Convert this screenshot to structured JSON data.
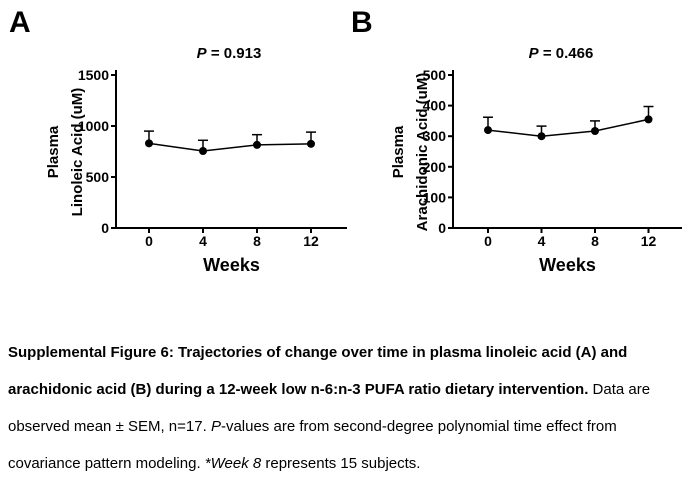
{
  "figure": {
    "background": "#ffffff",
    "ink_color": "#000000"
  },
  "chart_data": [
    {
      "type": "line",
      "panel_label": "A",
      "title": "P = 0.913",
      "title_italic_prefix": "P",
      "title_rest": " = 0.913",
      "xlabel": "Weeks",
      "ylabel": "Plasma Linoleic Acid (uM)",
      "ylabel_lines": [
        "Plasma",
        "Linoleic Acid (uM)"
      ],
      "x": [
        0,
        4,
        8,
        12
      ],
      "xticks": [
        "0",
        "4",
        "8",
        "12"
      ],
      "yticks": [
        0,
        500,
        1000,
        1500
      ],
      "ylim": [
        0,
        1500
      ],
      "grid": false,
      "legend": "none",
      "marker": "filled-circle",
      "error_bars": "mean + SEM (upper cap only)",
      "series": [
        {
          "name": "Plasma linoleic acid observed mean",
          "values": [
            830,
            755,
            815,
            825
          ],
          "sem_upper": [
            120,
            105,
            100,
            115
          ]
        }
      ]
    },
    {
      "type": "line",
      "panel_label": "B",
      "title": "P = 0.466",
      "title_italic_prefix": "P",
      "title_rest": " = 0.466",
      "xlabel": "Weeks",
      "ylabel": "Plasma Arachidonic Acid (uM)",
      "ylabel_lines": [
        "Plasma",
        "Arachidonic Acid (uM)"
      ],
      "x": [
        0,
        4,
        8,
        12
      ],
      "xticks": [
        "0",
        "4",
        "8",
        "12"
      ],
      "yticks": [
        0,
        100,
        200,
        300,
        400,
        500
      ],
      "ylim": [
        0,
        500
      ],
      "grid": false,
      "legend": "none",
      "marker": "filled-circle",
      "error_bars": "mean + SEM (upper cap only)",
      "series": [
        {
          "name": "Plasma arachidonic acid observed mean",
          "values": [
            320,
            300,
            317,
            355
          ],
          "sem_upper": [
            42,
            33,
            33,
            42
          ]
        }
      ]
    }
  ],
  "caption": {
    "lines": [
      [
        {
          "text": "Supplemental Figure 6: Trajectories of change over time in plasma linoleic acid (A) and",
          "style": "bold"
        }
      ],
      [
        {
          "text": "arachidonic acid (B) during a 12-week low n-6:n-3 PUFA ratio dietary intervention.",
          "style": "bold"
        },
        {
          "text": " Data are",
          "style": "regular"
        }
      ],
      [
        {
          "text": "observed mean ± SEM, n=17. ",
          "style": "regular"
        },
        {
          "text": "P",
          "style": "italic"
        },
        {
          "text": "-values are from second-degree polynomial time effect from",
          "style": "regular"
        }
      ],
      [
        {
          "text": "covariance pattern modeling. ",
          "style": "regular"
        },
        {
          "text": "*Week 8",
          "style": "italic"
        },
        {
          "text": " represents 15 subjects.",
          "style": "regular"
        }
      ]
    ]
  }
}
